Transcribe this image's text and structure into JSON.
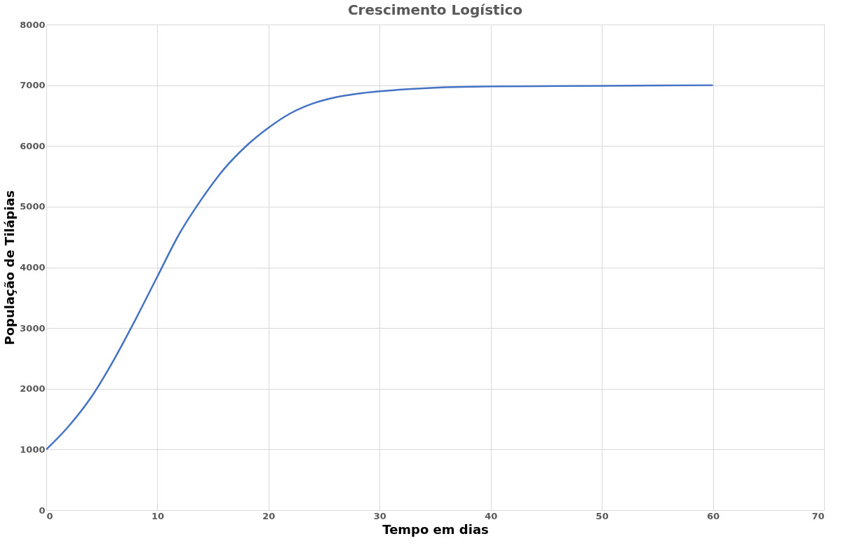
{
  "chart_data": {
    "type": "line",
    "title": "Crescimento Logístico",
    "xlabel": "Tempo em dias",
    "ylabel": "População de Tilápias",
    "x": [
      0,
      2,
      4,
      6,
      8,
      10,
      12,
      14,
      16,
      18,
      20,
      22,
      24,
      26,
      28,
      30,
      34,
      40,
      50,
      60
    ],
    "series": [
      {
        "color": "#4472c4",
        "values": [
          1000,
          1380,
          1850,
          2450,
          3130,
          3850,
          4560,
          5130,
          5620,
          6000,
          6300,
          6540,
          6700,
          6800,
          6860,
          6900,
          6950,
          6980,
          6990,
          7000
        ]
      }
    ],
    "xlim": [
      0,
      70
    ],
    "xticks": [
      0,
      10,
      20,
      30,
      40,
      50,
      60,
      70
    ],
    "ylim": [
      0,
      8000
    ],
    "yticks": [
      0,
      1000,
      2000,
      3000,
      4000,
      5000,
      6000,
      7000,
      8000
    ],
    "grid": true,
    "legend": false,
    "marker": "none",
    "line_style": "solid"
  }
}
